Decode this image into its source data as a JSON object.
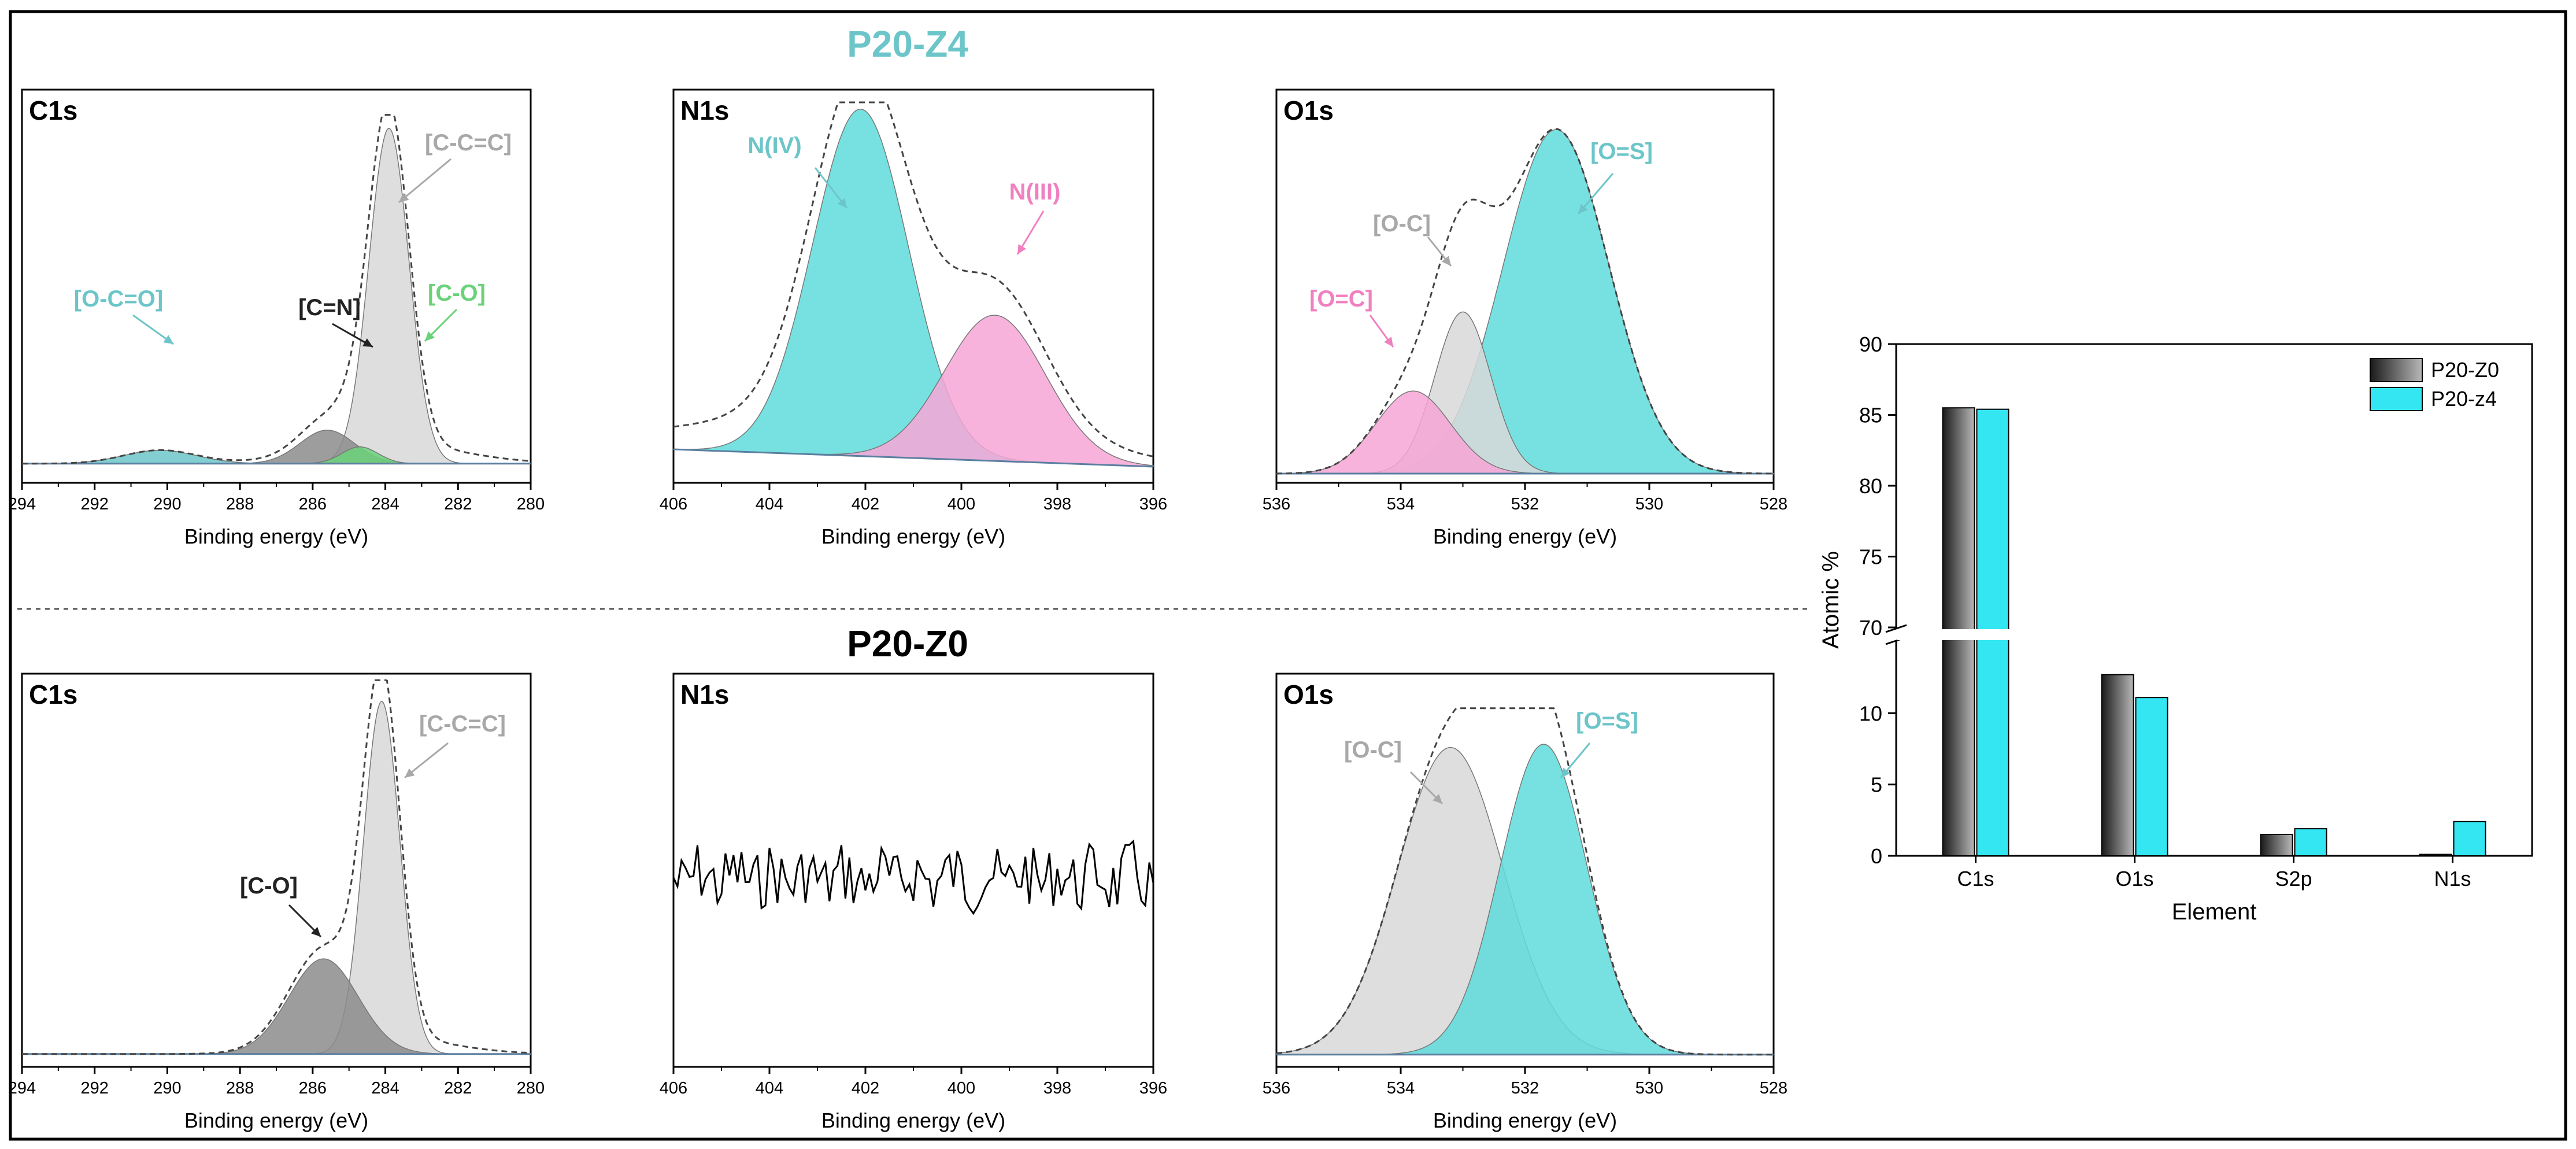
{
  "colors": {
    "cyan": "#6cc5c9",
    "cyan_fill": "#5fdcdc",
    "pink": "#f080c0",
    "pink_fill": "#f7a6d6",
    "gray_label": "#a8a8a8",
    "gray_fill": "#d8d8d8",
    "dark_fill": "#8c8c8c",
    "green": "#6bd27a",
    "bar_cyan": "#33e6f2",
    "bar_gray": "#808080",
    "baseline": "#5a7fa0"
  },
  "sections": {
    "top_title": "P20-Z4",
    "bottom_title": "P20-Z0"
  },
  "chart_data": [
    {
      "id": "top-c1s",
      "type": "line",
      "panel_label": "C1s",
      "xlabel": "Binding energy (eV)",
      "xlim": [
        294,
        280
      ],
      "x_ticks": [
        "294",
        "292",
        "290",
        "288",
        "286",
        "284",
        "282",
        "280"
      ],
      "components": [
        {
          "name": "[C-C=C]",
          "center": 283.9,
          "height": 1.0
        },
        {
          "name": "[C-O]",
          "center": 285.6,
          "height": 0.1
        },
        {
          "name": "[C=N]",
          "center": 284.7,
          "height": 0.05
        },
        {
          "name": "[O-C=O]",
          "center": 290.2,
          "height": 0.04
        }
      ],
      "annotations": [
        "[C-C=C]",
        "[C=N]",
        "[C-O]",
        "[O-C=O]"
      ]
    },
    {
      "id": "top-n1s",
      "type": "line",
      "panel_label": "N1s",
      "xlabel": "Binding energy (eV)",
      "xlim": [
        406,
        396
      ],
      "x_ticks": [
        "406",
        "404",
        "402",
        "400",
        "398",
        "396"
      ],
      "components": [
        {
          "name": "N(IV)",
          "center": 402.1,
          "height": 1.0
        },
        {
          "name": "N(III)",
          "center": 399.3,
          "height": 0.42
        }
      ],
      "annotations": [
        "N(IV)",
        "N(III)"
      ]
    },
    {
      "id": "top-o1s",
      "type": "line",
      "panel_label": "O1s",
      "xlabel": "Binding energy (eV)",
      "xlim": [
        536,
        528
      ],
      "x_ticks": [
        "536",
        "534",
        "532",
        "530",
        "528"
      ],
      "components": [
        {
          "name": "[O=S]",
          "center": 531.5,
          "height": 1.0
        },
        {
          "name": "[O-C]",
          "center": 533.0,
          "height": 0.47
        },
        {
          "name": "[O=C]",
          "center": 533.8,
          "height": 0.24
        }
      ],
      "annotations": [
        "[O=S]",
        "[O-C]",
        "[O=C]"
      ]
    },
    {
      "id": "bottom-c1s",
      "type": "line",
      "panel_label": "C1s",
      "xlabel": "Binding energy (eV)",
      "xlim": [
        294,
        280
      ],
      "x_ticks": [
        "294",
        "292",
        "290",
        "288",
        "286",
        "284",
        "282",
        "280"
      ],
      "components": [
        {
          "name": "[C-C=C]",
          "center": 284.1,
          "height": 1.0
        },
        {
          "name": "[C-O]",
          "center": 285.7,
          "height": 0.27
        }
      ],
      "annotations": [
        "[C-C=C]",
        "[C-O]"
      ]
    },
    {
      "id": "bottom-n1s",
      "type": "line",
      "panel_label": "N1s",
      "xlabel": "Binding energy (eV)",
      "xlim": [
        406,
        396
      ],
      "x_ticks": [
        "406",
        "404",
        "402",
        "400",
        "398",
        "396"
      ],
      "components": [],
      "annotations": []
    },
    {
      "id": "bottom-o1s",
      "type": "line",
      "panel_label": "O1s",
      "xlabel": "Binding energy (eV)",
      "xlim": [
        536,
        528
      ],
      "x_ticks": [
        "536",
        "534",
        "532",
        "530",
        "528"
      ],
      "components": [
        {
          "name": "[O-C]",
          "center": 533.2,
          "height": 0.94
        },
        {
          "name": "[O=S]",
          "center": 531.7,
          "height": 0.95
        }
      ],
      "annotations": [
        "[O-C]",
        "[O=S]"
      ]
    },
    {
      "id": "atomic-bar",
      "type": "bar",
      "xlabel": "Element",
      "ylabel": "Atomic %",
      "categories": [
        "C1s",
        "O1s",
        "S2p",
        "N1s"
      ],
      "series": [
        {
          "name": "P20-Z0",
          "values": [
            85.5,
            12.7,
            1.5,
            0.1
          ]
        },
        {
          "name": "P20-z4",
          "values": [
            85.4,
            11.1,
            1.9,
            2.4
          ]
        }
      ],
      "y_ticks_upper": [
        "70",
        "75",
        "80",
        "85",
        "90"
      ],
      "y_ticks_lower": [
        "0",
        "5",
        "10"
      ],
      "y_break": [
        15,
        70
      ]
    }
  ]
}
